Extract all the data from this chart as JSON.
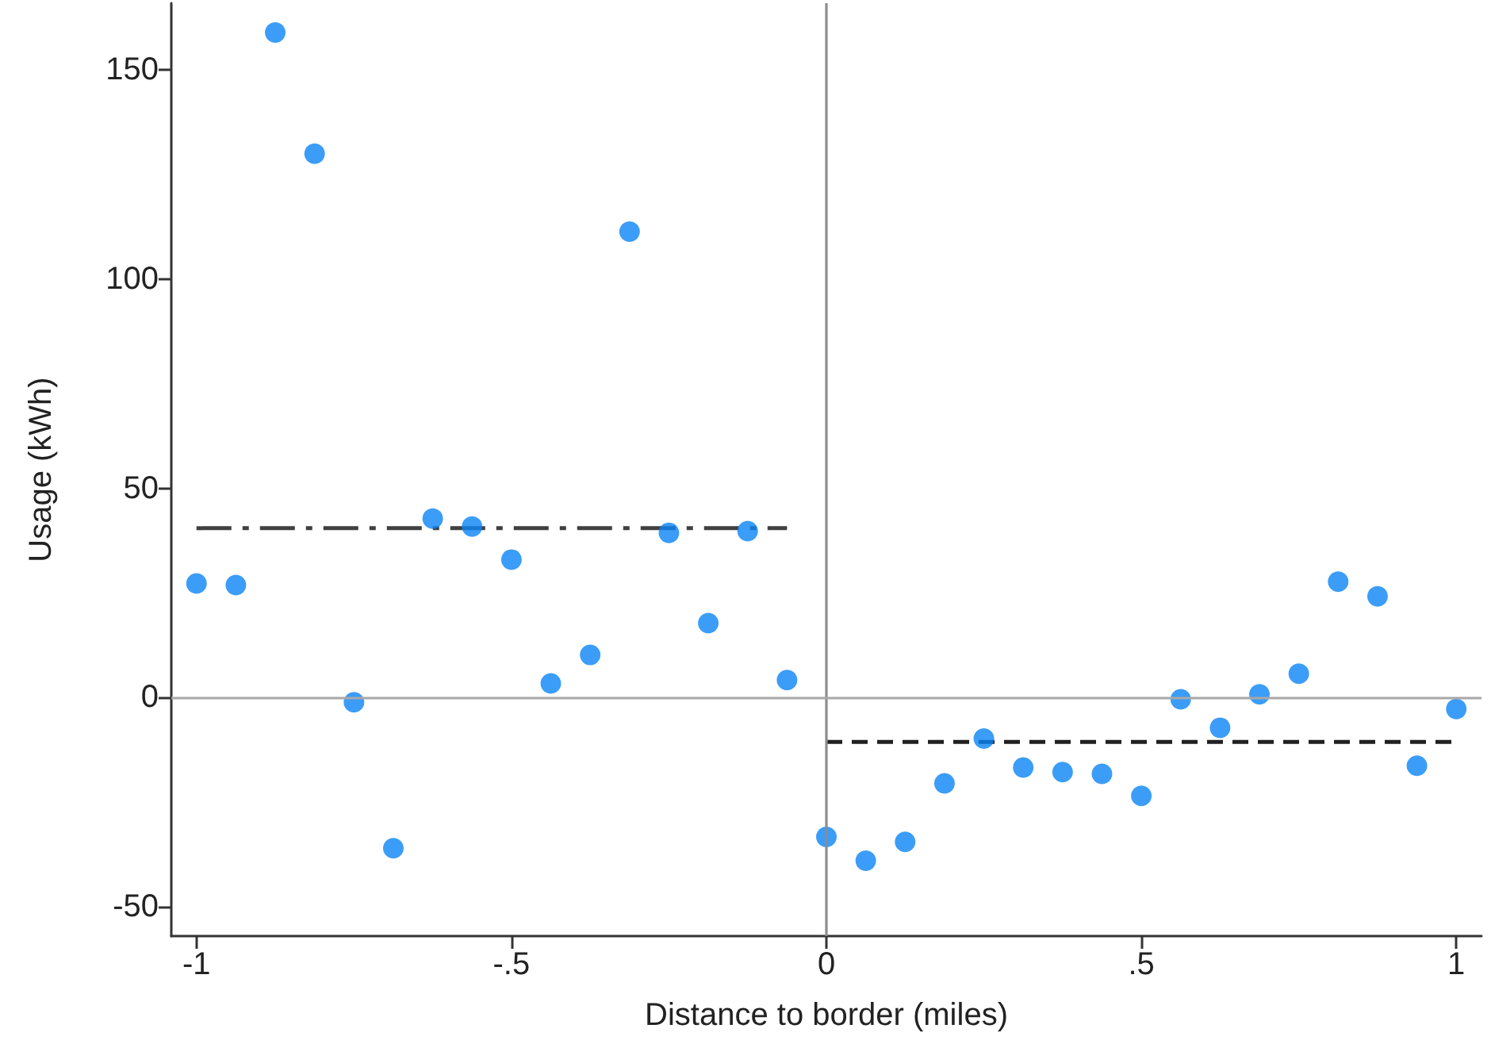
{
  "chart_data": {
    "type": "scatter",
    "xlabel": "Distance to border (miles)",
    "ylabel": "Usage (kWh)",
    "series": [
      {
        "color": "#0a84f5",
        "marker": "circle",
        "x": [
          -1,
          -0.9375,
          -0.875,
          -0.8125,
          -0.75,
          -0.6875,
          -0.625,
          -0.5625,
          -0.5,
          -0.4375,
          -0.375,
          -0.3125,
          -0.25,
          -0.1875,
          -0.125,
          -0.0625,
          0,
          0.0625,
          0.125,
          0.1875,
          0.25,
          0.3125,
          0.375,
          0.4375,
          0.5,
          0.5625,
          0.625,
          0.6875,
          0.75,
          0.8125,
          0.875,
          0.9375,
          1
        ],
        "values": [
          27.3,
          26.9,
          159,
          130,
          -1.1,
          -36,
          42.8,
          40.9,
          33,
          3.4,
          10.2,
          111.4,
          39.4,
          17.8,
          39.8,
          4.2,
          -33.3,
          -39,
          -34.5,
          -20.5,
          -9.8,
          -16.7,
          -17.8,
          -18.2,
          -23.5,
          -0.4,
          -7.2,
          0.8,
          5.7,
          27.7,
          24.2,
          -16.3,
          -2.7
        ]
      },
      {
        "type": "line",
        "color": "#404040",
        "marker": "none",
        "line_style": "dashdot",
        "x": [
          -1,
          -0.0625
        ],
        "values": [
          40.5,
          40.5
        ]
      },
      {
        "type": "line",
        "color": "#202020",
        "marker": "none",
        "line_style": "dashed",
        "x": [
          0,
          1
        ],
        "values": [
          -10.6,
          -10.6
        ]
      }
    ],
    "ref_lines": [
      {
        "axis": "x",
        "value": 0,
        "color": "#8c8c8c"
      },
      {
        "axis": "y",
        "value": 0,
        "color": "#a8a8a8"
      }
    ],
    "xlim": [
      -1.04,
      1.04
    ],
    "xticks": [
      -1,
      {
        "value": -0.5,
        "label": "-.5"
      },
      0,
      {
        "value": 0.5,
        "label": ".5"
      },
      1
    ],
    "ylim": [
      -57,
      166
    ],
    "yticks": [
      -50,
      0,
      50,
      100,
      150
    ],
    "grid": false
  }
}
